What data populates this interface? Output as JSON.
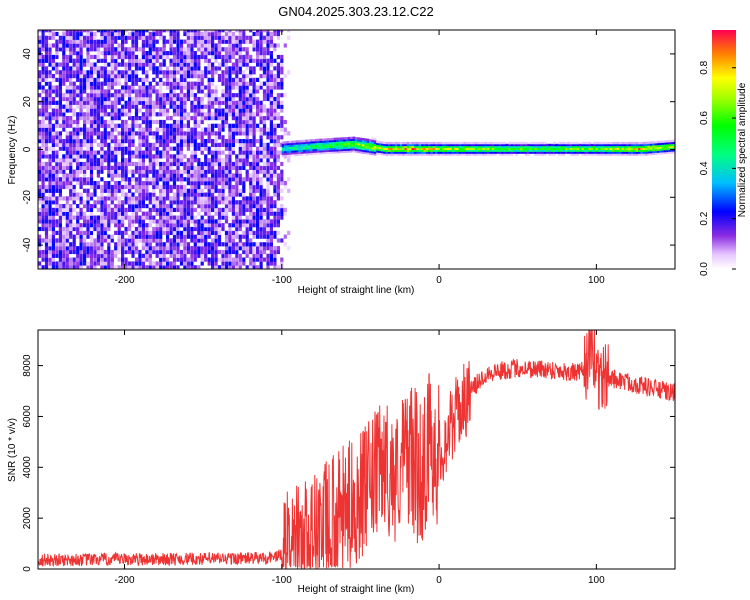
{
  "title": "GN04.2025.303.23.12.C22",
  "chart_data": [
    {
      "type": "heatmap",
      "xlabel": "Height of straight line (km)",
      "ylabel": "Frequency (Hz)",
      "xlim": [
        -255,
        150
      ],
      "ylim": [
        -50,
        50
      ],
      "xticks": [
        -200,
        -100,
        0,
        100
      ],
      "yticks": [
        -40,
        -20,
        0,
        20,
        40
      ],
      "noise_region": {
        "x": [
          -255,
          -95
        ],
        "frequency": [
          -50,
          50
        ],
        "amplitude_range": [
          0.05,
          0.25
        ]
      },
      "signal_band": [
        {
          "x": -100,
          "frequency": 0,
          "amplitude": 0.45
        },
        {
          "x": -80,
          "frequency": 1,
          "amplitude": 0.55
        },
        {
          "x": -55,
          "frequency": 2,
          "amplitude": 0.7
        },
        {
          "x": -35,
          "frequency": 0,
          "amplitude": 0.8
        },
        {
          "x": -20,
          "frequency": 0,
          "amplitude": 0.95
        },
        {
          "x": 0,
          "frequency": 0,
          "amplitude": 0.8
        },
        {
          "x": 50,
          "frequency": 0,
          "amplitude": 0.65
        },
        {
          "x": 100,
          "frequency": 0,
          "amplitude": 0.7
        },
        {
          "x": 130,
          "frequency": 0,
          "amplitude": 0.9
        },
        {
          "x": 150,
          "frequency": 1,
          "amplitude": 0.7
        }
      ],
      "colorbar": {
        "label": "Normalized spectral amplitude",
        "range": [
          0,
          0.95
        ],
        "ticks": [
          0.0,
          0.2,
          0.4,
          0.6,
          0.8
        ]
      }
    },
    {
      "type": "line",
      "xlabel": "Height of straight line (km)",
      "ylabel": "SNR (10 * v/v)",
      "xlim": [
        -255,
        150
      ],
      "ylim": [
        0,
        9400
      ],
      "xticks": [
        -200,
        -100,
        0,
        100
      ],
      "yticks": [
        0,
        2000,
        4000,
        6000,
        8000
      ],
      "series": [
        {
          "color": "#ee3333",
          "x": [
            -255,
            -200,
            -150,
            -110,
            -95,
            -80,
            -60,
            -45,
            -35,
            -28,
            -20,
            -12,
            -5,
            0,
            10,
            20,
            30,
            50,
            70,
            90,
            98,
            102,
            110,
            130,
            150
          ],
          "y": [
            350,
            380,
            400,
            430,
            600,
            1300,
            2300,
            3200,
            4200,
            3500,
            4800,
            3700,
            5200,
            4400,
            6000,
            7000,
            7700,
            7900,
            7850,
            7700,
            8500,
            7500,
            7500,
            7200,
            6900
          ]
        }
      ]
    }
  ]
}
